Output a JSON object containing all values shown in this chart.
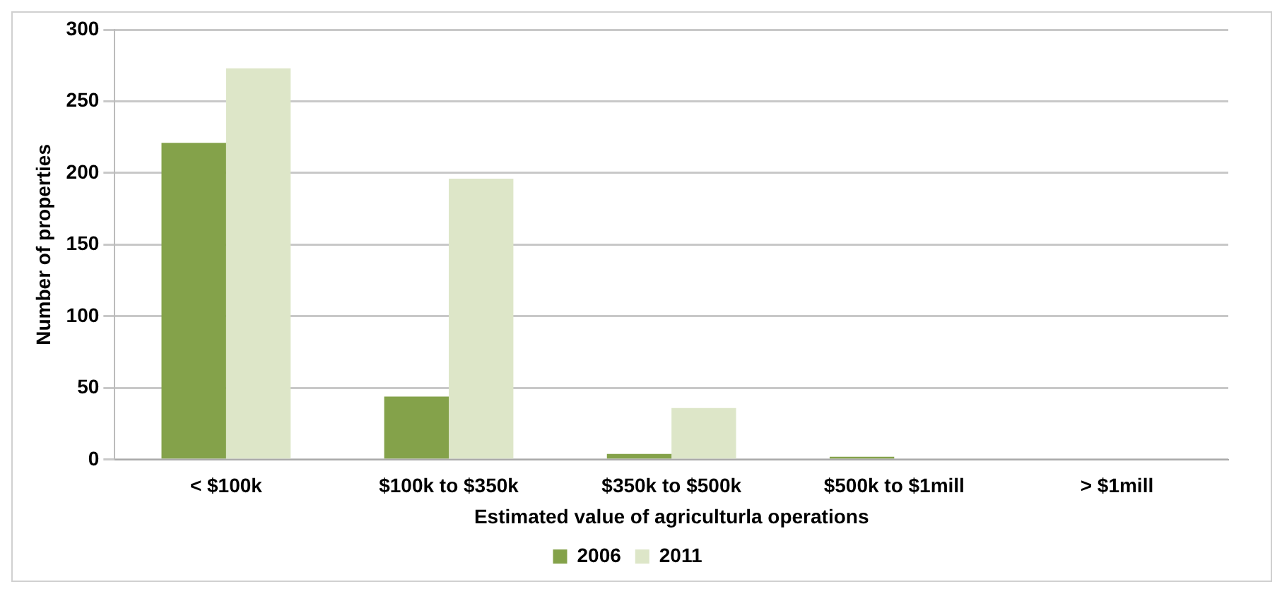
{
  "chart_data": {
    "type": "bar",
    "xlabel": "Estimated value of agriculturla operations",
    "ylabel": "Number of properties",
    "categories": [
      "< $100k",
      "$100k to $350k",
      "$350k to $500k",
      "$500k to $1mill",
      "> $1mill"
    ],
    "series": [
      {
        "name": "2006",
        "color": "#84a24a",
        "values": [
          221,
          44,
          4,
          2,
          null
        ]
      },
      {
        "name": "2011",
        "color": "#dde6c8",
        "values": [
          273,
          196,
          36,
          null,
          0
        ]
      }
    ],
    "ylim": [
      0,
      300
    ],
    "yticks": [
      0,
      50,
      100,
      150,
      200,
      250,
      300
    ],
    "grid": "y",
    "legend": "bottom"
  }
}
